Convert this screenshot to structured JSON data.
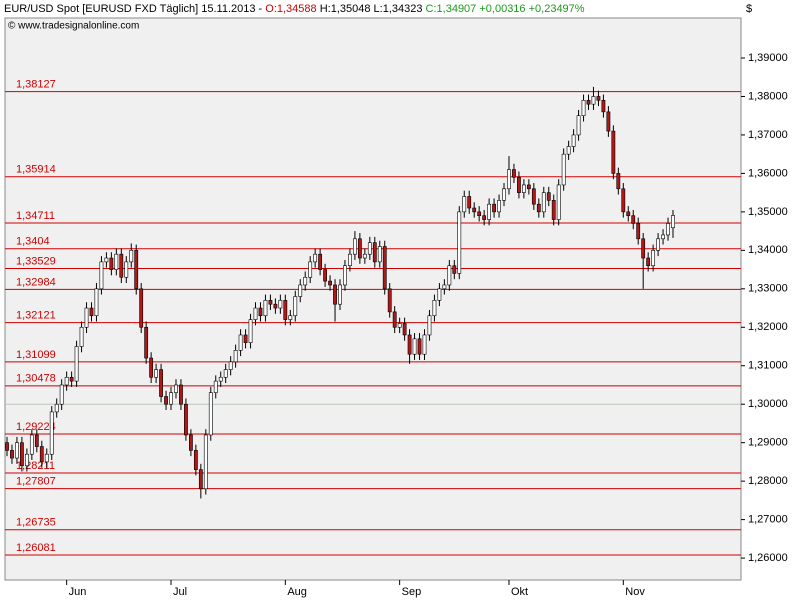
{
  "chart_data": {
    "type": "candlestick",
    "header": {
      "instrument": "EUR/USD Spot [EURUSD FXD  Täglich] 15.11.2013 -",
      "open": "O:1,34588",
      "high": "H:1,35048",
      "low": "L:1,34323",
      "close": "C:1,34907",
      "change": "+0,00316",
      "change_pct": "+0,23497%"
    },
    "watermark": "© www.tradesignalonline.com",
    "currency": "$",
    "categories": [
      null,
      null,
      null,
      null,
      null,
      null,
      null,
      null,
      null,
      null,
      null,
      null,
      "Jun",
      null,
      null,
      null,
      null,
      null,
      null,
      null,
      null,
      null,
      null,
      null,
      null,
      null,
      null,
      null,
      null,
      null,
      null,
      null,
      null,
      "Jul",
      null,
      null,
      null,
      null,
      null,
      null,
      null,
      null,
      null,
      null,
      null,
      null,
      null,
      null,
      null,
      null,
      null,
      null,
      null,
      null,
      null,
      null,
      "Aug",
      null,
      null,
      null,
      null,
      null,
      null,
      null,
      null,
      null,
      null,
      null,
      null,
      null,
      null,
      null,
      null,
      null,
      null,
      null,
      null,
      null,
      null,
      "Sep",
      null,
      null,
      null,
      null,
      null,
      null,
      null,
      null,
      null,
      null,
      null,
      null,
      null,
      null,
      null,
      null,
      null,
      null,
      null,
      null,
      null,
      "Okt",
      null,
      null,
      null,
      null,
      null,
      null,
      null,
      null,
      null,
      null,
      null,
      null,
      null,
      null,
      null,
      null,
      null,
      null,
      null,
      null,
      null,
      null,
      "Nov",
      null,
      null,
      null,
      null,
      null,
      null,
      null,
      null,
      null,
      null
    ],
    "open": [
      1.29,
      1.288,
      1.286,
      1.29,
      1.284,
      1.287,
      1.292,
      1.289,
      1.285,
      1.287,
      1.298,
      1.3,
      1.305,
      1.307,
      1.306,
      1.315,
      1.32,
      1.325,
      1.323,
      1.33,
      1.337,
      1.338,
      1.335,
      1.339,
      1.333,
      1.337,
      1.34,
      1.33,
      1.32,
      1.312,
      1.307,
      1.309,
      1.302,
      1.3,
      1.303,
      1.305,
      1.3,
      1.292,
      1.288,
      1.283,
      1.278,
      1.292,
      1.303,
      1.306,
      1.307,
      1.309,
      1.311,
      1.314,
      1.318,
      1.316,
      1.322,
      1.325,
      1.323,
      1.327,
      1.326,
      1.325,
      1.327,
      1.322,
      1.323,
      1.328,
      1.331,
      1.333,
      1.337,
      1.339,
      1.335,
      1.332,
      1.331,
      1.326,
      1.331,
      1.336,
      1.339,
      1.343,
      1.338,
      1.339,
      1.342,
      1.337,
      1.341,
      1.33,
      1.324,
      1.32,
      1.321,
      1.318,
      1.313,
      1.317,
      1.313,
      1.318,
      1.323,
      1.327,
      1.33,
      1.331,
      1.336,
      1.334,
      1.35,
      1.354,
      1.351,
      1.35,
      1.349,
      1.348,
      1.352,
      1.35,
      1.353,
      1.356,
      1.361,
      1.359,
      1.355,
      1.357,
      1.356,
      1.352,
      1.35,
      1.355,
      1.353,
      1.348,
      1.357,
      1.365,
      1.367,
      1.37,
      1.375,
      1.379,
      1.378,
      1.38,
      1.379,
      1.376,
      1.371,
      1.36,
      1.356,
      1.35,
      1.349,
      1.347,
      1.343,
      1.338,
      1.336,
      1.34,
      1.343,
      1.344,
      1.34588
    ],
    "high": [
      1.2915,
      1.2895,
      1.2915,
      1.2915,
      1.2885,
      1.2935,
      1.2935,
      1.2905,
      1.2885,
      1.2995,
      1.3015,
      1.3065,
      1.3085,
      1.3085,
      1.3165,
      1.3215,
      1.3265,
      1.3265,
      1.3315,
      1.3385,
      1.3395,
      1.3395,
      1.3405,
      1.3405,
      1.3385,
      1.3418,
      1.3415,
      1.3315,
      1.3215,
      1.3135,
      1.3105,
      1.3105,
      1.3035,
      1.3045,
      1.3065,
      1.3065,
      1.3015,
      1.2935,
      1.2895,
      1.2845,
      1.2935,
      1.3045,
      1.3075,
      1.3085,
      1.3105,
      1.3125,
      1.3155,
      1.3195,
      1.3195,
      1.3235,
      1.3265,
      1.3265,
      1.3285,
      1.3285,
      1.3275,
      1.3285,
      1.3285,
      1.3245,
      1.3295,
      1.3325,
      1.3345,
      1.3385,
      1.3405,
      1.3405,
      1.3365,
      1.3335,
      1.3325,
      1.3325,
      1.3375,
      1.3405,
      1.345,
      1.3445,
      1.3405,
      1.3435,
      1.3435,
      1.3425,
      1.3425,
      1.3315,
      1.3255,
      1.3225,
      1.3225,
      1.3195,
      1.3185,
      1.3185,
      1.3195,
      1.3245,
      1.3285,
      1.3315,
      1.3325,
      1.3375,
      1.3375,
      1.3515,
      1.3555,
      1.3555,
      1.3525,
      1.3515,
      1.3505,
      1.3535,
      1.3535,
      1.3545,
      1.3575,
      1.3645,
      1.3625,
      1.3605,
      1.3585,
      1.3585,
      1.3575,
      1.3535,
      1.3565,
      1.3565,
      1.3545,
      1.3585,
      1.3665,
      1.3685,
      1.3715,
      1.3765,
      1.3805,
      1.3805,
      1.3825,
      1.3815,
      1.3805,
      1.3775,
      1.3725,
      1.3615,
      1.3575,
      1.3515,
      1.3505,
      1.3485,
      1.3445,
      1.3395,
      1.3415,
      1.3445,
      1.3455,
      1.3485,
      1.35048
    ],
    "low": [
      1.2865,
      1.2845,
      1.2845,
      1.2825,
      1.2825,
      1.2855,
      1.2875,
      1.2835,
      1.2835,
      1.2855,
      1.2965,
      1.2985,
      1.3035,
      1.3045,
      1.3045,
      1.3135,
      1.3185,
      1.3215,
      1.3215,
      1.3285,
      1.3355,
      1.3335,
      1.3335,
      1.3315,
      1.3315,
      1.3355,
      1.3285,
      1.3185,
      1.3105,
      1.3055,
      1.3055,
      1.3005,
      1.2985,
      1.2985,
      1.3015,
      1.2985,
      1.2905,
      1.2865,
      1.2815,
      1.2755,
      1.2765,
      1.2905,
      1.3015,
      1.3045,
      1.3055,
      1.3075,
      1.3095,
      1.3125,
      1.3145,
      1.3145,
      1.3205,
      1.3215,
      1.3215,
      1.3245,
      1.3235,
      1.3235,
      1.3205,
      1.3205,
      1.3215,
      1.3265,
      1.3295,
      1.3315,
      1.3355,
      1.3335,
      1.3305,
      1.3295,
      1.3215,
      1.3245,
      1.3295,
      1.3345,
      1.3375,
      1.3365,
      1.3365,
      1.3375,
      1.3355,
      1.3355,
      1.3285,
      1.3225,
      1.3185,
      1.3185,
      1.3165,
      1.3105,
      1.3115,
      1.3115,
      1.3115,
      1.3165,
      1.3215,
      1.3255,
      1.3285,
      1.3295,
      1.3325,
      1.3325,
      1.3485,
      1.3495,
      1.3485,
      1.3475,
      1.3465,
      1.3465,
      1.3485,
      1.3485,
      1.3515,
      1.3545,
      1.3575,
      1.3535,
      1.3535,
      1.3545,
      1.3505,
      1.3485,
      1.3485,
      1.3515,
      1.3465,
      1.3465,
      1.3555,
      1.3635,
      1.3655,
      1.3685,
      1.3735,
      1.3765,
      1.3765,
      1.3775,
      1.3745,
      1.3695,
      1.3585,
      1.3545,
      1.3485,
      1.3475,
      1.3455,
      1.3415,
      1.33,
      1.3345,
      1.3345,
      1.3385,
      1.3415,
      1.3425,
      1.34323
    ],
    "close": [
      1.288,
      1.286,
      1.29,
      1.284,
      1.287,
      1.292,
      1.289,
      1.285,
      1.287,
      1.298,
      1.3,
      1.305,
      1.307,
      1.306,
      1.315,
      1.32,
      1.325,
      1.323,
      1.33,
      1.337,
      1.338,
      1.335,
      1.339,
      1.333,
      1.337,
      1.34,
      1.33,
      1.32,
      1.312,
      1.307,
      1.309,
      1.302,
      1.3,
      1.303,
      1.305,
      1.3,
      1.292,
      1.288,
      1.283,
      1.278,
      1.292,
      1.303,
      1.306,
      1.307,
      1.309,
      1.311,
      1.314,
      1.318,
      1.316,
      1.322,
      1.325,
      1.323,
      1.327,
      1.326,
      1.325,
      1.327,
      1.322,
      1.323,
      1.328,
      1.331,
      1.333,
      1.337,
      1.339,
      1.335,
      1.332,
      1.331,
      1.326,
      1.331,
      1.336,
      1.339,
      1.343,
      1.338,
      1.339,
      1.342,
      1.337,
      1.341,
      1.33,
      1.324,
      1.32,
      1.321,
      1.318,
      1.313,
      1.317,
      1.313,
      1.318,
      1.323,
      1.327,
      1.33,
      1.331,
      1.336,
      1.334,
      1.35,
      1.354,
      1.351,
      1.35,
      1.349,
      1.348,
      1.352,
      1.35,
      1.353,
      1.356,
      1.361,
      1.359,
      1.355,
      1.357,
      1.356,
      1.352,
      1.35,
      1.355,
      1.353,
      1.348,
      1.357,
      1.365,
      1.367,
      1.37,
      1.375,
      1.379,
      1.378,
      1.38,
      1.379,
      1.376,
      1.371,
      1.36,
      1.356,
      1.35,
      1.349,
      1.347,
      1.343,
      1.338,
      1.336,
      1.34,
      1.343,
      1.344,
      1.347,
      1.34907
    ],
    "up_color": "#ffffff",
    "down_color": "#b01818",
    "wick_color": "#000000",
    "ylim": [
      1.2543,
      1.4004
    ],
    "yticks": [
      {
        "value": 1.26,
        "label": "1,26000"
      },
      {
        "value": 1.27,
        "label": "1,27000"
      },
      {
        "value": 1.28,
        "label": "1,28000"
      },
      {
        "value": 1.29,
        "label": "1,29000"
      },
      {
        "value": 1.3,
        "label": "1,30000"
      },
      {
        "value": 1.31,
        "label": "1,31000"
      },
      {
        "value": 1.32,
        "label": "1,32000"
      },
      {
        "value": 1.33,
        "label": "1,33000"
      },
      {
        "value": 1.34,
        "label": "1,34000"
      },
      {
        "value": 1.35,
        "label": "1,35000"
      },
      {
        "value": 1.36,
        "label": "1,36000"
      },
      {
        "value": 1.37,
        "label": "1,37000"
      },
      {
        "value": 1.38,
        "label": "1,38000"
      },
      {
        "value": 1.39,
        "label": "1,39000"
      }
    ],
    "reference_line": 1.3,
    "level_color": "#d00000",
    "levels": [
      {
        "value": 1.38127,
        "label": "1,38127"
      },
      {
        "value": 1.35914,
        "label": "1,35914"
      },
      {
        "value": 1.34711,
        "label": "1,34711"
      },
      {
        "value": 1.3404,
        "label": "1,3404"
      },
      {
        "value": 1.33529,
        "label": "1,33529"
      },
      {
        "value": 1.32984,
        "label": "1,32984"
      },
      {
        "value": 1.32121,
        "label": "1,32121"
      },
      {
        "value": 1.31099,
        "label": "1,31099"
      },
      {
        "value": 1.30478,
        "label": "1,30478"
      },
      {
        "value": 1.29224,
        "label": "1,29224"
      },
      {
        "value": 1.28211,
        "label": "1,28211"
      },
      {
        "value": 1.27807,
        "label": "1,27807"
      },
      {
        "value": 1.26735,
        "label": "1,26735"
      },
      {
        "value": 1.26081,
        "label": "1,26081"
      }
    ]
  }
}
